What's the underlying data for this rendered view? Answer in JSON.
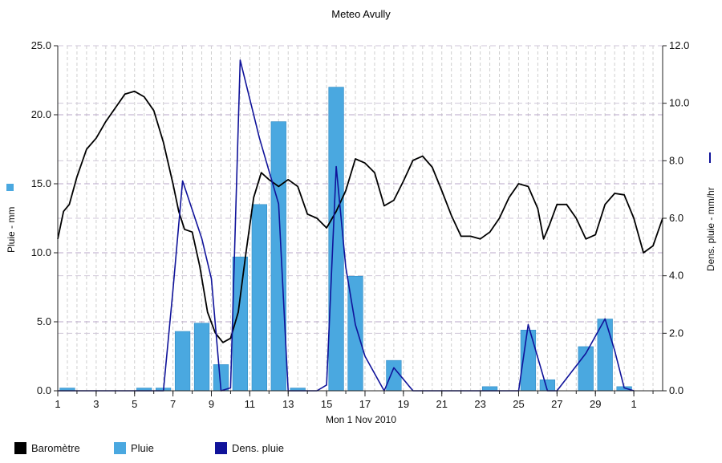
{
  "chart_data": {
    "type": "bar+line",
    "title": "Meteo  Avully",
    "xlabel": "Mon 1 Nov 2010",
    "ylabel_left": "Pluie - mm",
    "ylabel_right": "Dens. pluie - mm/hr",
    "left_axis": {
      "min": 0,
      "max": 25,
      "ticks": [
        "0.0",
        "5.0",
        "10.0",
        "15.0",
        "20.0",
        "25.0"
      ]
    },
    "right_axis": {
      "min": 0,
      "max": 12,
      "ticks": [
        "0.0",
        "2.0",
        "4.0",
        "6.0",
        "8.0",
        "10.0",
        "12.0"
      ]
    },
    "x_axis": {
      "min": 1,
      "max": 32.5,
      "ticks": [
        "1",
        "3",
        "5",
        "7",
        "9",
        "11",
        "13",
        "15",
        "17",
        "19",
        "21",
        "23",
        "25",
        "27",
        "29",
        "1"
      ]
    },
    "grid": true,
    "legend_position": "bottom",
    "colors": {
      "barometre": "#000000",
      "pluie": "#4aa8e0",
      "dens": "#10139a",
      "grid": "#b9a7c9"
    },
    "series": [
      {
        "name": "Pluie",
        "kind": "bar",
        "axis": "left",
        "x": [
          1.5,
          5.5,
          6.5,
          7.5,
          8.5,
          9.5,
          10.5,
          11.5,
          12.5,
          13.5,
          15.5,
          16.5,
          18.5,
          23.5,
          25.5,
          26.5,
          28.5,
          29.5,
          30.5
        ],
        "values": [
          0.2,
          0.2,
          0.2,
          4.3,
          4.9,
          1.9,
          9.7,
          13.5,
          19.5,
          0.2,
          22.0,
          8.3,
          2.2,
          0.3,
          4.4,
          0.8,
          3.2,
          5.2,
          0.3
        ]
      },
      {
        "name": "Baromètre",
        "kind": "line",
        "axis": "left",
        "x": [
          1.0,
          1.3,
          1.6,
          2.0,
          2.5,
          3.0,
          3.5,
          4.0,
          4.5,
          5.0,
          5.5,
          6.0,
          6.5,
          7.0,
          7.3,
          7.6,
          8.0,
          8.4,
          8.8,
          9.2,
          9.6,
          10.0,
          10.4,
          10.8,
          11.2,
          11.6,
          12.0,
          12.5,
          13.0,
          13.5,
          14.0,
          14.5,
          15.0,
          15.5,
          16.0,
          16.5,
          17.0,
          17.5,
          18.0,
          18.5,
          19.0,
          19.5,
          20.0,
          20.5,
          21.0,
          21.5,
          22.0,
          22.5,
          23.0,
          23.5,
          24.0,
          24.5,
          25.0,
          25.5,
          26.0,
          26.3,
          26.6,
          27.0,
          27.5,
          28.0,
          28.5,
          29.0,
          29.5,
          30.0,
          30.5,
          31.0,
          31.5,
          32.0,
          32.5
        ],
        "values": [
          11.0,
          13.0,
          13.5,
          15.5,
          17.5,
          18.3,
          19.5,
          20.5,
          21.5,
          21.7,
          21.3,
          20.3,
          18.0,
          15.0,
          13.0,
          11.7,
          11.5,
          9.0,
          5.7,
          4.2,
          3.5,
          3.8,
          5.7,
          10.0,
          14.0,
          15.8,
          15.3,
          14.8,
          15.3,
          14.8,
          12.8,
          12.5,
          11.8,
          13.0,
          14.5,
          16.8,
          16.5,
          15.8,
          13.4,
          13.8,
          15.2,
          16.7,
          17.0,
          16.2,
          14.5,
          12.7,
          11.2,
          11.2,
          11.0,
          11.5,
          12.5,
          14.0,
          15.0,
          14.8,
          13.2,
          11.0,
          12.0,
          13.5,
          13.5,
          12.5,
          11.0,
          11.3,
          13.5,
          14.3,
          14.2,
          12.5,
          10.0,
          10.5,
          12.5
        ]
      },
      {
        "name": "Dens. pluie",
        "kind": "line",
        "axis": "right",
        "x": [
          1.0,
          6.5,
          7.0,
          7.5,
          8.5,
          9.0,
          9.5,
          10.0,
          10.5,
          11.5,
          12.5,
          13.0,
          13.5,
          14.5,
          15.0,
          15.5,
          16.0,
          16.5,
          17.0,
          18.0,
          18.5,
          19.5,
          25.0,
          25.5,
          26.5,
          27.0,
          28.5,
          29.5,
          30.0,
          30.5,
          31.0
        ],
        "values": [
          0.0,
          0.0,
          3.5,
          7.3,
          5.3,
          3.9,
          0.0,
          0.1,
          11.5,
          8.8,
          6.5,
          0.0,
          0.0,
          0.0,
          0.2,
          7.8,
          4.3,
          2.3,
          1.2,
          0.0,
          0.8,
          0.0,
          0.0,
          2.3,
          0.0,
          0.0,
          1.3,
          2.5,
          1.4,
          0.1,
          0.0
        ]
      }
    ]
  }
}
